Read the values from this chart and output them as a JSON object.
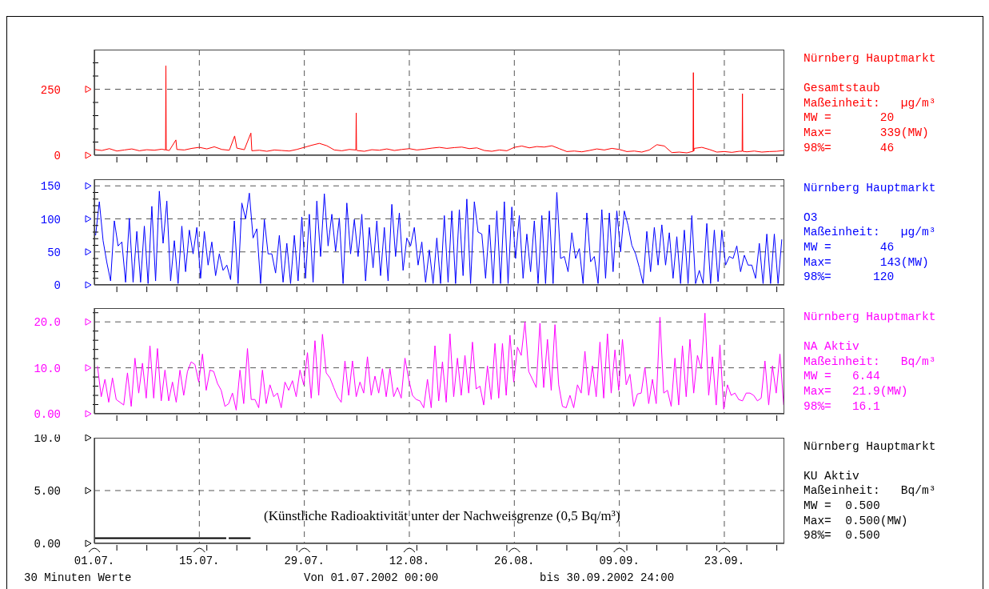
{
  "chart_data": [
    {
      "type": "line",
      "grid": true,
      "tick_labels": "y",
      "xlim": [
        "2002-07-01",
        "2002-10-01"
      ],
      "ylim": [
        0,
        400
      ],
      "yticks": [
        0,
        250,
        {
          "value": 50,
          "label": null
        },
        {
          "value": 100,
          "label": null
        },
        {
          "value": 150,
          "label": null
        },
        {
          "value": 200,
          "label": null
        },
        {
          "value": 300,
          "label": null
        },
        {
          "value": 350,
          "label": null
        }
      ],
      "series": [
        {
          "color": "#ff0000",
          "x": [
            "2002-07-01",
            "2002-07-02",
            "2002-07-03",
            "2002-07-04",
            "2002-07-05",
            "2002-07-06",
            "2002-07-07",
            "2002-07-08",
            "2002-07-09",
            "2002-07-10",
            "2002-07-10T12:00",
            "2002-07-10T13:00",
            "2002-07-10T14:00",
            "2002-07-11",
            "2002-07-11T21:00",
            "2002-07-12",
            "2002-07-13",
            "2002-07-14",
            "2002-07-15",
            "2002-07-16",
            "2002-07-17",
            "2002-07-18",
            "2002-07-19",
            "2002-07-19T17:00",
            "2002-07-20",
            "2002-07-21",
            "2002-07-21T21:00",
            "2002-07-22",
            "2002-07-23",
            "2002-07-24",
            "2002-07-25",
            "2002-07-26",
            "2002-07-27",
            "2002-07-28",
            "2002-07-29",
            "2002-07-30",
            "2002-07-31",
            "2002-08-01",
            "2002-08-02",
            "2002-08-03",
            "2002-08-04",
            "2002-08-04T21:00",
            "2002-08-04T22:00",
            "2002-08-04T23:00",
            "2002-08-05",
            "2002-08-06",
            "2002-08-07",
            "2002-08-08",
            "2002-08-09",
            "2002-08-10",
            "2002-08-11",
            "2002-08-12",
            "2002-08-13",
            "2002-08-14",
            "2002-08-15",
            "2002-08-16",
            "2002-08-17",
            "2002-08-18",
            "2002-08-19",
            "2002-08-20",
            "2002-08-21",
            "2002-08-22",
            "2002-08-23",
            "2002-08-24",
            "2002-08-25",
            "2002-08-26",
            "2002-08-27",
            "2002-08-28",
            "2002-08-29",
            "2002-08-30",
            "2002-08-31",
            "2002-09-01",
            "2002-09-02",
            "2002-09-03",
            "2002-09-04",
            "2002-09-05",
            "2002-09-06",
            "2002-09-07",
            "2002-09-08",
            "2002-09-09",
            "2002-09-10",
            "2002-09-11",
            "2002-09-12",
            "2002-09-13",
            "2002-09-14",
            "2002-09-15",
            "2002-09-16",
            "2002-09-17",
            "2002-09-18",
            "2002-09-18T20:00",
            "2002-09-18T21:00",
            "2002-09-18T22:00",
            "2002-09-19",
            "2002-09-20",
            "2002-09-21",
            "2002-09-22",
            "2002-09-23",
            "2002-09-24",
            "2002-09-25",
            "2002-09-25T09:00",
            "2002-09-25T10:00",
            "2002-09-25T11:00",
            "2002-09-26",
            "2002-09-27",
            "2002-09-28",
            "2002-09-29",
            "2002-09-30",
            "2002-10-01"
          ],
          "values": [
            22,
            18,
            25,
            16,
            20,
            24,
            17,
            21,
            19,
            23,
            20,
            339,
            20,
            18,
            58,
            22,
            20,
            26,
            30,
            24,
            32,
            22,
            19,
            73,
            27,
            21,
            84,
            17,
            19,
            15,
            20,
            18,
            16,
            22,
            30,
            38,
            45,
            36,
            20,
            17,
            22,
            20,
            160,
            20,
            18,
            15,
            21,
            19,
            24,
            18,
            22,
            25,
            20,
            23,
            27,
            30,
            26,
            29,
            31,
            25,
            28,
            18,
            15,
            20,
            17,
            30,
            35,
            28,
            33,
            31,
            36,
            25,
            14,
            16,
            13,
            18,
            24,
            20,
            26,
            22,
            14,
            16,
            12,
            20,
            40,
            35,
            10,
            12,
            9,
            15,
            313,
            15,
            26,
            30,
            22,
            12,
            14,
            11,
            15,
            15,
            233,
            15,
            13,
            16,
            12,
            14,
            15,
            18
          ]
        }
      ],
      "annotations": [
        "Nürnberg Hauptmarkt",
        "Gesamtstaub",
        "Maßeinheit:   µg/m³",
        "MW =       20",
        "Max=       339(MW)",
        "98%=       46"
      ]
    },
    {
      "type": "line",
      "grid": true,
      "tick_labels": "y",
      "xlim": [
        "2002-07-01",
        "2002-10-01"
      ],
      "ylim": [
        0,
        160
      ],
      "yticks": [
        0,
        50,
        100,
        150,
        {
          "value": 10,
          "label": null
        },
        {
          "value": 20,
          "label": null
        },
        {
          "value": 30,
          "label": null
        },
        {
          "value": 40,
          "label": null
        },
        {
          "value": 60,
          "label": null
        },
        {
          "value": 70,
          "label": null
        },
        {
          "value": 80,
          "label": null
        },
        {
          "value": 90,
          "label": null
        },
        {
          "value": 110,
          "label": null
        },
        {
          "value": 120,
          "label": null
        },
        {
          "value": 130,
          "label": null
        },
        {
          "value": 140,
          "label": null
        }
      ],
      "series": [
        {
          "color": "#0000ff",
          "x": [
            "2002-07-01T04:00",
            "2002-07-01T16:00",
            "2002-07-02T04:00",
            "2002-07-02T16:00",
            "2002-07-03T04:00",
            "2002-07-03T16:00",
            "2002-07-04T04:00",
            "2002-07-04T16:00",
            "2002-07-05T04:00",
            "2002-07-05T16:00",
            "2002-07-06T04:00",
            "2002-07-06T16:00",
            "2002-07-07T04:00",
            "2002-07-07T16:00",
            "2002-07-08T04:00",
            "2002-07-08T16:00",
            "2002-07-09T04:00",
            "2002-07-09T16:00",
            "2002-07-10T04:00",
            "2002-07-10T16:00",
            "2002-07-11T04:00",
            "2002-07-11T16:00",
            "2002-07-12T04:00",
            "2002-07-12T16:00",
            "2002-07-13T04:00",
            "2002-07-13T16:00",
            "2002-07-14T04:00",
            "2002-07-14T16:00",
            "2002-07-15T04:00",
            "2002-07-15T16:00",
            "2002-07-16T04:00",
            "2002-07-16T16:00",
            "2002-07-17T04:00",
            "2002-07-17T16:00",
            "2002-07-18T04:00",
            "2002-07-18T16:00",
            "2002-07-19T04:00",
            "2002-07-19T16:00",
            "2002-07-20T04:00",
            "2002-07-20T16:00",
            "2002-07-21T04:00",
            "2002-07-21T16:00",
            "2002-07-22T04:00",
            "2002-07-22T16:00",
            "2002-07-23T04:00",
            "2002-07-23T16:00",
            "2002-07-24T04:00",
            "2002-07-24T16:00",
            "2002-07-25T04:00",
            "2002-07-25T16:00",
            "2002-07-26T04:00",
            "2002-07-26T16:00",
            "2002-07-27T04:00",
            "2002-07-27T16:00",
            "2002-07-28T04:00",
            "2002-07-28T16:00",
            "2002-07-29T04:00",
            "2002-07-29T16:00",
            "2002-07-30T04:00",
            "2002-07-30T16:00",
            "2002-07-31T04:00",
            "2002-07-31T16:00",
            "2002-08-01T04:00",
            "2002-08-01T16:00",
            "2002-08-02T04:00",
            "2002-08-02T16:00",
            "2002-08-03T04:00",
            "2002-08-03T16:00",
            "2002-08-04T04:00",
            "2002-08-04T16:00",
            "2002-08-05T04:00",
            "2002-08-05T16:00",
            "2002-08-06T04:00",
            "2002-08-06T16:00",
            "2002-08-07T04:00",
            "2002-08-07T16:00",
            "2002-08-08T04:00",
            "2002-08-08T16:00",
            "2002-08-09T04:00",
            "2002-08-09T16:00",
            "2002-08-10T04:00",
            "2002-08-10T16:00",
            "2002-08-11T04:00",
            "2002-08-11T16:00",
            "2002-08-12T04:00",
            "2002-08-12T16:00",
            "2002-08-13T04:00",
            "2002-08-13T16:00",
            "2002-08-14T04:00",
            "2002-08-14T16:00",
            "2002-08-15T04:00",
            "2002-08-15T16:00",
            "2002-08-16T04:00",
            "2002-08-16T16:00",
            "2002-08-17T04:00",
            "2002-08-17T16:00",
            "2002-08-18T04:00",
            "2002-08-18T16:00",
            "2002-08-19T04:00",
            "2002-08-19T16:00",
            "2002-08-20T04:00",
            "2002-08-20T16:00",
            "2002-08-21T04:00",
            "2002-08-21T16:00",
            "2002-08-22T04:00",
            "2002-08-22T16:00",
            "2002-08-23T04:00",
            "2002-08-23T16:00",
            "2002-08-24T04:00",
            "2002-08-24T16:00",
            "2002-08-25T04:00",
            "2002-08-25T16:00",
            "2002-08-26T04:00",
            "2002-08-26T16:00",
            "2002-08-27T04:00",
            "2002-08-27T16:00",
            "2002-08-28T04:00",
            "2002-08-28T16:00",
            "2002-08-29T04:00",
            "2002-08-29T16:00",
            "2002-08-30T04:00",
            "2002-08-30T16:00",
            "2002-08-31T04:00",
            "2002-08-31T16:00",
            "2002-09-01T04:00",
            "2002-09-01T16:00",
            "2002-09-02T04:00",
            "2002-09-02T16:00",
            "2002-09-03T04:00",
            "2002-09-03T16:00",
            "2002-09-04T04:00",
            "2002-09-04T16:00",
            "2002-09-05T04:00",
            "2002-09-05T16:00",
            "2002-09-06T04:00",
            "2002-09-06T16:00",
            "2002-09-07T04:00",
            "2002-09-07T16:00",
            "2002-09-08T04:00",
            "2002-09-08T16:00",
            "2002-09-09T04:00",
            "2002-09-09T16:00",
            "2002-09-10T04:00",
            "2002-09-10T16:00",
            "2002-09-11T04:00",
            "2002-09-11T16:00",
            "2002-09-12T04:00",
            "2002-09-12T16:00",
            "2002-09-13T04:00",
            "2002-09-13T16:00",
            "2002-09-14T04:00",
            "2002-09-14T16:00",
            "2002-09-15T04:00",
            "2002-09-15T16:00",
            "2002-09-16T04:00",
            "2002-09-16T16:00",
            "2002-09-17T04:00",
            "2002-09-17T16:00",
            "2002-09-18T04:00",
            "2002-09-18T16:00",
            "2002-09-19T04:00",
            "2002-09-19T16:00",
            "2002-09-20T04:00",
            "2002-09-20T16:00",
            "2002-09-21T04:00",
            "2002-09-21T16:00",
            "2002-09-22T04:00",
            "2002-09-22T16:00",
            "2002-09-23T04:00",
            "2002-09-23T16:00",
            "2002-09-24T04:00",
            "2002-09-24T16:00",
            "2002-09-25T04:00",
            "2002-09-25T16:00",
            "2002-09-26T04:00",
            "2002-09-26T16:00",
            "2002-09-27T04:00",
            "2002-09-27T16:00",
            "2002-09-28T04:00",
            "2002-09-28T16:00",
            "2002-09-29T04:00",
            "2002-09-29T16:00",
            "2002-09-30T04:00",
            "2002-09-30T16:00"
          ],
          "values": [
            75,
            126,
            67,
            34,
            6,
            97,
            59,
            65,
            4,
            101,
            4,
            81,
            4,
            89,
            2,
            119,
            6,
            142,
            63,
            127,
            6,
            67,
            2,
            89,
            20,
            83,
            47,
            87,
            10,
            81,
            30,
            65,
            14,
            47,
            22,
            30,
            8,
            97,
            2,
            124,
            100,
            139,
            71,
            85,
            2,
            99,
            47,
            47,
            18,
            75,
            4,
            63,
            2,
            75,
            6,
            103,
            10,
            107,
            4,
            127,
            43,
            138,
            59,
            107,
            51,
            101,
            2,
            124,
            47,
            99,
            43,
            107,
            6,
            87,
            26,
            97,
            14,
            87,
            6,
            122,
            43,
            109,
            22,
            71,
            59,
            87,
            30,
            65,
            4,
            53,
            2,
            71,
            2,
            105,
            4,
            112,
            2,
            114,
            14,
            130,
            2,
            126,
            80,
            77,
            10,
            91,
            2,
            112,
            2,
            126,
            2,
            118,
            40,
            105,
            10,
            77,
            20,
            97,
            2,
            105,
            2,
            112,
            2,
            140,
            40,
            43,
            20,
            79,
            40,
            55,
            2,
            109,
            35,
            43,
            2,
            114,
            10,
            109,
            20,
            112,
            50,
            112,
            90,
            60,
            47,
            26,
            2,
            81,
            20,
            87,
            30,
            91,
            30,
            79,
            10,
            73,
            2,
            83,
            2,
            105,
            2,
            22,
            2,
            93,
            2,
            83,
            5,
            83,
            30,
            43,
            40,
            59,
            20,
            45,
            30,
            30,
            10,
            63,
            2,
            77,
            2,
            77,
            2,
            69
          ]
        }
      ],
      "annotations": [
        "Nürnberg Hauptmarkt",
        "O3",
        "Maßeinheit:   µg/m³",
        "MW =       46",
        "Max=       143(MW)",
        "98%=      120"
      ]
    },
    {
      "type": "line",
      "grid": true,
      "tick_labels": "y",
      "xlim": [
        "2002-07-01",
        "2002-10-01"
      ],
      "ylim": [
        0,
        23
      ],
      "yticks": [
        {
          "value": 0,
          "label": "0.00"
        },
        {
          "value": 10,
          "label": "10.0"
        },
        {
          "value": 20,
          "label": "20.0"
        },
        {
          "value": 2,
          "label": null
        },
        {
          "value": 4,
          "label": null
        },
        {
          "value": 6,
          "label": null
        },
        {
          "value": 8,
          "label": null
        },
        {
          "value": 12,
          "label": null
        },
        {
          "value": 14,
          "label": null
        },
        {
          "value": 16,
          "label": null
        },
        {
          "value": 18,
          "label": null
        },
        {
          "value": 22,
          "label": null
        }
      ],
      "series": [
        {
          "color": "#ff00ff",
          "x": [
            "2002-07-01T10:00",
            "2002-07-01T22:00",
            "2002-07-02T10:00",
            "2002-07-02T22:00",
            "2002-07-03T10:00",
            "2002-07-03T22:00",
            "2002-07-04T10:00",
            "2002-07-04T22:00",
            "2002-07-05T10:00",
            "2002-07-05T22:00",
            "2002-07-06T10:00",
            "2002-07-06T22:00",
            "2002-07-07T10:00",
            "2002-07-07T22:00",
            "2002-07-08T10:00",
            "2002-07-08T22:00",
            "2002-07-09T10:00",
            "2002-07-09T22:00",
            "2002-07-10T10:00",
            "2002-07-10T22:00",
            "2002-07-11T10:00",
            "2002-07-11T22:00",
            "2002-07-12T10:00",
            "2002-07-12T22:00",
            "2002-07-13T10:00",
            "2002-07-13T22:00",
            "2002-07-14T10:00",
            "2002-07-14T22:00",
            "2002-07-15T10:00",
            "2002-07-15T22:00",
            "2002-07-16T10:00",
            "2002-07-16T22:00",
            "2002-07-17T10:00",
            "2002-07-17T22:00",
            "2002-07-18T10:00",
            "2002-07-18T22:00",
            "2002-07-19T10:00",
            "2002-07-19T22:00",
            "2002-07-20T10:00",
            "2002-07-20T22:00",
            "2002-07-21T10:00",
            "2002-07-21T22:00",
            "2002-07-22T10:00",
            "2002-07-22T22:00",
            "2002-07-23T10:00",
            "2002-07-23T22:00",
            "2002-07-24T10:00",
            "2002-07-24T22:00",
            "2002-07-25T10:00",
            "2002-07-25T22:00",
            "2002-07-26T10:00",
            "2002-07-26T22:00",
            "2002-07-27T10:00",
            "2002-07-27T22:00",
            "2002-07-28T10:00",
            "2002-07-28T22:00",
            "2002-07-29T10:00",
            "2002-07-29T22:00",
            "2002-07-30T10:00",
            "2002-07-30T22:00",
            "2002-07-31T10:00",
            "2002-07-31T22:00",
            "2002-08-01T10:00",
            "2002-08-01T22:00",
            "2002-08-02T10:00",
            "2002-08-02T22:00",
            "2002-08-03T10:00",
            "2002-08-03T22:00",
            "2002-08-04T10:00",
            "2002-08-04T22:00",
            "2002-08-05T10:00",
            "2002-08-05T22:00",
            "2002-08-06T10:00",
            "2002-08-06T22:00",
            "2002-08-07T10:00",
            "2002-08-07T22:00",
            "2002-08-08T10:00",
            "2002-08-08T22:00",
            "2002-08-09T10:00",
            "2002-08-09T22:00",
            "2002-08-10T10:00",
            "2002-08-10T22:00",
            "2002-08-11T10:00",
            "2002-08-11T22:00",
            "2002-08-12T10:00",
            "2002-08-12T22:00",
            "2002-08-13T10:00",
            "2002-08-13T22:00",
            "2002-08-14T10:00",
            "2002-08-14T22:00",
            "2002-08-15T10:00",
            "2002-08-15T22:00",
            "2002-08-16T10:00",
            "2002-08-16T22:00",
            "2002-08-17T10:00",
            "2002-08-17T22:00",
            "2002-08-18T10:00",
            "2002-08-18T22:00",
            "2002-08-19T10:00",
            "2002-08-19T22:00",
            "2002-08-20T10:00",
            "2002-08-20T22:00",
            "2002-08-21T10:00",
            "2002-08-21T22:00",
            "2002-08-22T10:00",
            "2002-08-22T22:00",
            "2002-08-23T10:00",
            "2002-08-23T22:00",
            "2002-08-24T10:00",
            "2002-08-24T22:00",
            "2002-08-25T10:00",
            "2002-08-25T22:00",
            "2002-08-26T10:00",
            "2002-08-26T22:00",
            "2002-08-27T10:00",
            "2002-08-27T22:00",
            "2002-08-28T10:00",
            "2002-08-28T22:00",
            "2002-08-29T10:00",
            "2002-08-29T22:00",
            "2002-08-30T10:00",
            "2002-08-30T22:00",
            "2002-08-31T10:00",
            "2002-08-31T22:00",
            "2002-09-01T10:00",
            "2002-09-01T22:00",
            "2002-09-02T10:00",
            "2002-09-02T22:00",
            "2002-09-03T10:00",
            "2002-09-03T22:00",
            "2002-09-04T10:00",
            "2002-09-04T22:00",
            "2002-09-05T10:00",
            "2002-09-05T22:00",
            "2002-09-06T10:00",
            "2002-09-06T22:00",
            "2002-09-07T10:00",
            "2002-09-07T22:00",
            "2002-09-08T10:00",
            "2002-09-08T22:00",
            "2002-09-09T10:00",
            "2002-09-09T22:00",
            "2002-09-10T10:00",
            "2002-09-10T22:00",
            "2002-09-11T10:00",
            "2002-09-11T22:00",
            "2002-09-12T10:00",
            "2002-09-12T22:00",
            "2002-09-13T10:00",
            "2002-09-13T22:00",
            "2002-09-14T10:00",
            "2002-09-14T22:00",
            "2002-09-15T10:00",
            "2002-09-15T22:00",
            "2002-09-16T10:00",
            "2002-09-16T22:00",
            "2002-09-17T10:00",
            "2002-09-17T22:00",
            "2002-09-18T10:00",
            "2002-09-18T22:00",
            "2002-09-19T10:00",
            "2002-09-19T22:00",
            "2002-09-20T10:00",
            "2002-09-20T22:00",
            "2002-09-21T10:00",
            "2002-09-21T22:00",
            "2002-09-22T10:00",
            "2002-09-22T22:00",
            "2002-09-23T10:00",
            "2002-09-23T22:00",
            "2002-09-24T10:00",
            "2002-09-24T22:00",
            "2002-09-25T10:00",
            "2002-09-25T22:00",
            "2002-09-26T10:00",
            "2002-09-26T22:00",
            "2002-09-27T10:00",
            "2002-09-27T22:00",
            "2002-09-28T10:00",
            "2002-09-28T22:00",
            "2002-09-29T10:00",
            "2002-09-29T22:00",
            "2002-09-30T10:00",
            "2002-09-30T22:00"
          ],
          "values": [
            10.4,
            3.7,
            7.5,
            2.5,
            7.8,
            3.1,
            2.5,
            1.9,
            8.9,
            1.6,
            12.1,
            4.5,
            11.0,
            3.4,
            14.8,
            3.4,
            14.2,
            2.8,
            9.5,
            2.8,
            6.9,
            2.5,
            9.5,
            4.0,
            9.2,
            11.3,
            10.7,
            6.9,
            13.0,
            5.1,
            9.5,
            9.2,
            6.6,
            5.1,
            1.6,
            2.2,
            4.5,
            0.8,
            9.5,
            2.2,
            14.2,
            3.1,
            3.1,
            1.3,
            9.5,
            2.2,
            6.3,
            3.7,
            4.5,
            1.3,
            6.9,
            5.1,
            7.2,
            3.7,
            9.5,
            6.3,
            13.3,
            3.4,
            15.9,
            4.0,
            17.3,
            8.9,
            7.8,
            5.7,
            3.7,
            2.5,
            11.5,
            4.0,
            11.5,
            3.7,
            6.9,
            4.5,
            12.4,
            4.0,
            8.2,
            4.5,
            9.8,
            3.7,
            9.8,
            3.7,
            5.7,
            3.4,
            12.1,
            7.5,
            4.0,
            3.1,
            2.8,
            1.3,
            7.5,
            1.3,
            14.8,
            2.8,
            11.3,
            2.5,
            17.4,
            3.7,
            12.1,
            4.0,
            12.7,
            4.5,
            15.6,
            5.4,
            6.0,
            1.9,
            10.4,
            3.1,
            15.3,
            3.4,
            15.3,
            4.0,
            17.1,
            6.9,
            14.5,
            12.7,
            20.0,
            9.2,
            7.5,
            5.7,
            19.7,
            5.7,
            16.2,
            5.1,
            19.4,
            6.3,
            1.6,
            1.3,
            4.0,
            1.3,
            6.3,
            4.5,
            13.6,
            4.0,
            10.4,
            3.7,
            15.6,
            3.4,
            17.4,
            4.5,
            13.9,
            5.1,
            16.2,
            6.3,
            8.6,
            1.6,
            4.3,
            4.5,
            10.1,
            2.2,
            7.5,
            2.2,
            21.0,
            4.5,
            5.1,
            1.6,
            12.1,
            1.9,
            14.8,
            3.7,
            16.2,
            4.5,
            12.7,
            9.8,
            21.9,
            4.0,
            12.4,
            1.9,
            15.0,
            1.0,
            6.3,
            4.0,
            4.5,
            3.1,
            2.8,
            4.5,
            4.5,
            4.0,
            2.8,
            3.4,
            11.5,
            1.9,
            10.4,
            4.5,
            13.0,
            1.9
          ]
        }
      ],
      "annotations": [
        "Nürnberg Hauptmarkt",
        "NA Aktiv",
        "Maßeinheit:   Bq/m³",
        "MW =   6.44",
        "Max=   21.9(MW)",
        "98%=   16.1"
      ]
    },
    {
      "type": "line",
      "grid": true,
      "xlim": [
        "2002-07-01",
        "2002-10-01"
      ],
      "ylim": [
        0,
        10
      ],
      "xticks": [
        {
          "value": "2002-07-01",
          "label": "01.07."
        },
        {
          "value": "2002-07-15",
          "label": "15.07."
        },
        {
          "value": "2002-07-29",
          "label": "29.07."
        },
        {
          "value": "2002-08-12",
          "label": "12.08."
        },
        {
          "value": "2002-08-26",
          "label": "26.08."
        },
        {
          "value": "2002-09-09",
          "label": "09.09."
        },
        {
          "value": "2002-09-23",
          "label": "23.09."
        },
        {
          "value": "2002-07-04",
          "label": null
        },
        {
          "value": "2002-07-08",
          "label": null
        },
        {
          "value": "2002-07-12",
          "label": null
        },
        {
          "value": "2002-07-16",
          "label": null
        },
        {
          "value": "2002-07-20",
          "label": null
        },
        {
          "value": "2002-07-24",
          "label": null
        },
        {
          "value": "2002-07-28",
          "label": null
        },
        {
          "value": "2002-08-01",
          "label": null
        },
        {
          "value": "2002-08-05",
          "label": null
        },
        {
          "value": "2002-08-09",
          "label": null
        },
        {
          "value": "2002-08-13",
          "label": null
        },
        {
          "value": "2002-08-17",
          "label": null
        },
        {
          "value": "2002-08-21",
          "label": null
        },
        {
          "value": "2002-08-25",
          "label": null
        },
        {
          "value": "2002-08-29",
          "label": null
        },
        {
          "value": "2002-09-02",
          "label": null
        },
        {
          "value": "2002-09-06",
          "label": null
        },
        {
          "value": "2002-09-10",
          "label": null
        },
        {
          "value": "2002-09-14",
          "label": null
        },
        {
          "value": "2002-09-18",
          "label": null
        },
        {
          "value": "2002-09-22",
          "label": null
        },
        {
          "value": "2002-09-26",
          "label": null
        },
        {
          "value": "2002-09-30",
          "label": null
        }
      ],
      "yticks": [
        {
          "value": 0,
          "label": "0.00"
        },
        {
          "value": 5,
          "label": "5.00"
        },
        {
          "value": 10,
          "label": "10.0"
        }
      ],
      "series": [
        {
          "color": "#000000",
          "x": [
            "2002-07-01T00:00",
            "2002-07-18T14:00",
            "2002-07-18T18:00",
            "2002-07-18T22:00",
            "2002-07-21T20:00"
          ],
          "values": [
            0.5,
            0.5,
            null,
            0.5,
            0.5
          ]
        }
      ],
      "annotations": [
        "Nürnberg Hauptmarkt",
        "KU Aktiv",
        "Maßeinheit:   Bq/m³",
        "MW =  0.500",
        "Max=  0.500(MW)",
        "98%=  0.500",
        "(Künstliche Radioaktivität unter der Nachweisgrenze (0,5 Bq/m³)",
        "30 Minuten Werte",
        "Von 01.07.2002 00:00",
        "bis 30.09.2002 24:00"
      ]
    }
  ]
}
